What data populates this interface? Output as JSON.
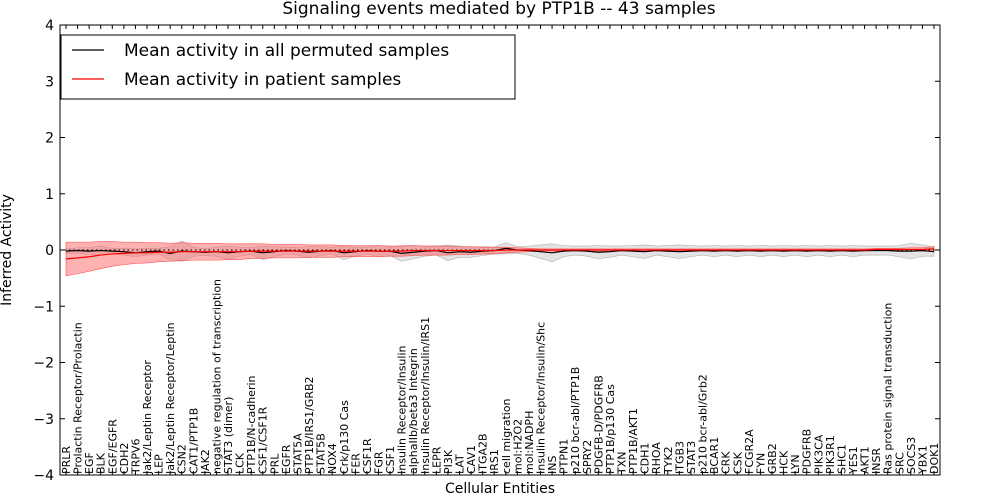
{
  "chart_data": {
    "type": "line",
    "title": "Signaling events mediated by PTP1B -- 43 samples",
    "xlabel": "Cellular Entities",
    "ylabel": "Inferred Activity",
    "ylim": [
      -4,
      4
    ],
    "yticks": [
      4,
      3,
      2,
      1,
      0,
      -1,
      -2,
      -3,
      -4
    ],
    "grid": false,
    "legend_position": "top-left",
    "categories": [
      "PRLR",
      "Prolactin Receptor/Prolactin",
      "EGF",
      "BLK",
      "EGF/EGFR",
      "CDH2",
      "TRPV6",
      "Jak2/Leptin Receptor",
      "LEP",
      "Jak2/Leptin Receptor/Leptin",
      "CSN2",
      "CAT1/PTP1B",
      "JAK2",
      "negative regulation of transcription",
      "STAT3 (dimer)",
      "LCK",
      "PTP1B/N-cadherin",
      "CSF1/CSF1R",
      "PRL",
      "EGFR",
      "STAT5A",
      "PTP1B/IRS1/GRB2",
      "STAT5B",
      "NOX4",
      "Crk/p130 Cas",
      "FER",
      "CSF1R",
      "FGR",
      "CSF1",
      "Insulin Receptor/Insulin",
      "alphaIIb/beta3 Integrin",
      "Insulin Receptor/Insulin/IRS1",
      "LEPR",
      "PI3K",
      "LAT",
      "CAV1",
      "ITGA2B",
      "IRS1",
      "cell migration",
      "mol:H2O2",
      "mol:NADPH",
      "Insulin Receptor/Insulin/Shc",
      "INS",
      "PTPN1",
      "p210 bcr-abl/PTP1B",
      "SPRY2",
      "PDGFB-D/PDGFRB",
      "PTP1B/p130 Cas",
      "TXN",
      "PTP1B/AKT1",
      "CDH1",
      "RHOA",
      "TYK2",
      "ITGB3",
      "STAT3",
      "p210 bcr-abl/Grb2",
      "BCAR1",
      "CRK",
      "CSK",
      "FCGR2A",
      "FYN",
      "GRB2",
      "HCK",
      "LYN",
      "PDGFRB",
      "PIK3CA",
      "PIK3R1",
      "SHC1",
      "YES1",
      "AKT1",
      "INSR",
      "Ras protein signal transduction",
      "SRC",
      "SOCS3",
      "YBX1",
      "DOK1"
    ],
    "series": [
      {
        "name": "Mean activity in all permuted samples",
        "color": "#000000",
        "values": [
          -0.02,
          -0.01,
          -0.02,
          -0.01,
          -0.02,
          -0.03,
          -0.05,
          -0.03,
          -0.02,
          -0.06,
          -0.02,
          -0.03,
          -0.04,
          -0.03,
          -0.05,
          -0.03,
          -0.02,
          -0.05,
          -0.03,
          -0.01,
          -0.02,
          -0.04,
          -0.02,
          -0.01,
          -0.05,
          -0.03,
          -0.01,
          -0.02,
          -0.02,
          -0.06,
          -0.04,
          -0.02,
          -0.01,
          -0.05,
          -0.03,
          -0.04,
          -0.02,
          -0.01,
          0.03,
          0.0,
          -0.01,
          -0.03,
          -0.05,
          -0.02,
          -0.01,
          -0.02,
          -0.04,
          -0.03,
          -0.01,
          -0.02,
          -0.03,
          -0.01,
          -0.02,
          -0.03,
          -0.02,
          -0.01,
          -0.02,
          -0.01,
          -0.02,
          -0.01,
          -0.02,
          -0.01,
          -0.02,
          -0.01,
          -0.02,
          -0.01,
          -0.02,
          -0.01,
          -0.02,
          -0.01,
          -0.01,
          -0.01,
          -0.02,
          -0.02,
          -0.01,
          -0.03
        ],
        "band": [
          0.04,
          0.05,
          0.06,
          0.08,
          0.05,
          0.06,
          0.07,
          0.06,
          0.05,
          0.12,
          0.18,
          0.08,
          0.06,
          0.08,
          0.12,
          0.08,
          0.06,
          0.12,
          0.09,
          0.06,
          0.07,
          0.1,
          0.08,
          0.06,
          0.12,
          0.08,
          0.06,
          0.1,
          0.08,
          0.14,
          0.12,
          0.09,
          0.08,
          0.14,
          0.1,
          0.09,
          0.08,
          0.06,
          0.1,
          0.06,
          0.08,
          0.12,
          0.16,
          0.1,
          0.08,
          0.09,
          0.12,
          0.1,
          0.08,
          0.1,
          0.12,
          0.08,
          0.1,
          0.12,
          0.1,
          0.08,
          0.1,
          0.08,
          0.1,
          0.08,
          0.1,
          0.08,
          0.1,
          0.08,
          0.1,
          0.08,
          0.1,
          0.08,
          0.1,
          0.08,
          0.08,
          0.08,
          0.1,
          0.14,
          0.1,
          0.08
        ]
      },
      {
        "name": "Mean activity in patient samples",
        "color": "#ff0000",
        "values": [
          -0.16,
          -0.14,
          -0.12,
          -0.09,
          -0.07,
          -0.06,
          -0.05,
          -0.05,
          -0.04,
          -0.04,
          -0.03,
          -0.03,
          -0.03,
          -0.03,
          -0.03,
          -0.03,
          -0.02,
          -0.02,
          -0.02,
          -0.02,
          -0.02,
          -0.02,
          -0.02,
          -0.02,
          -0.02,
          -0.02,
          -0.02,
          -0.02,
          -0.02,
          -0.02,
          -0.01,
          -0.01,
          -0.01,
          -0.01,
          -0.01,
          -0.01,
          -0.01,
          -0.01,
          0.0,
          0.0,
          0.0,
          0.0,
          0.0,
          0.0,
          0.0,
          0.0,
          0.0,
          0.0,
          0.0,
          0.0,
          0.0,
          0.0,
          0.0,
          0.0,
          0.0,
          0.0,
          0.0,
          0.0,
          0.0,
          0.0,
          0.0,
          0.0,
          0.0,
          0.0,
          0.0,
          0.0,
          0.0,
          0.0,
          0.0,
          0.0,
          0.01,
          0.01,
          0.01,
          0.01,
          0.01,
          0.02
        ],
        "band": [
          0.3,
          0.28,
          0.26,
          0.24,
          0.22,
          0.2,
          0.19,
          0.18,
          0.17,
          0.16,
          0.16,
          0.15,
          0.15,
          0.15,
          0.14,
          0.14,
          0.13,
          0.13,
          0.12,
          0.12,
          0.12,
          0.11,
          0.11,
          0.11,
          0.1,
          0.1,
          0.1,
          0.1,
          0.09,
          0.09,
          0.09,
          0.08,
          0.08,
          0.08,
          0.07,
          0.07,
          0.06,
          0.06,
          0.05,
          0.04,
          0.03,
          0.02,
          0.02,
          0.02,
          0.02,
          0.02,
          0.02,
          0.02,
          0.02,
          0.02,
          0.02,
          0.02,
          0.02,
          0.02,
          0.02,
          0.02,
          0.02,
          0.02,
          0.02,
          0.02,
          0.02,
          0.02,
          0.02,
          0.02,
          0.02,
          0.02,
          0.02,
          0.02,
          0.02,
          0.02,
          0.02,
          0.02,
          0.02,
          0.03,
          0.03,
          0.04
        ]
      }
    ]
  }
}
